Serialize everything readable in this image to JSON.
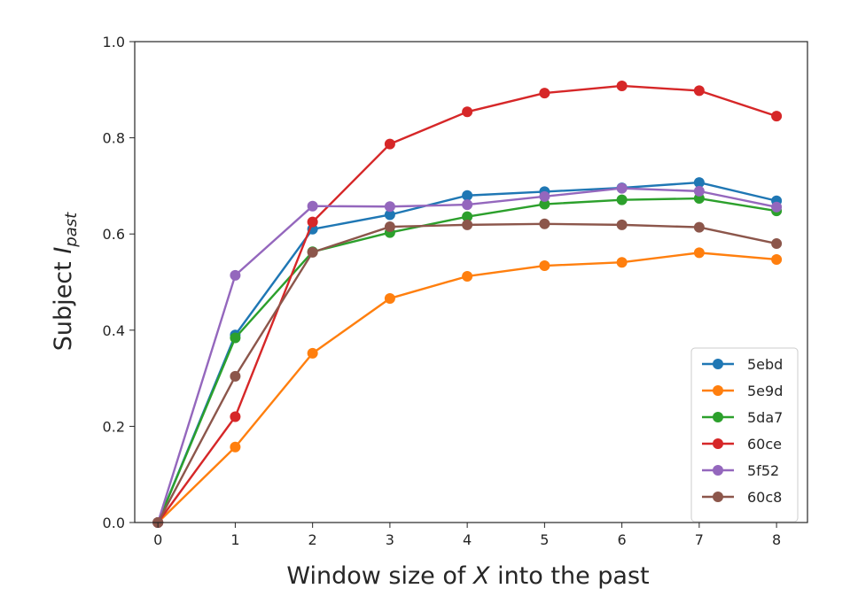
{
  "chart_data": {
    "type": "line",
    "xlabel": {
      "prefix": "Window size of ",
      "italic": "X",
      "suffix": " into the past"
    },
    "ylabel": {
      "prefix": "Subject ",
      "italic": "I",
      "subscript": "past"
    },
    "x": [
      0,
      1,
      2,
      3,
      4,
      5,
      6,
      7,
      8
    ],
    "xlim": [
      -0.3,
      8.4
    ],
    "ylim": [
      0,
      1
    ],
    "xticks": [
      "0",
      "1",
      "2",
      "3",
      "4",
      "5",
      "6",
      "7",
      "8"
    ],
    "yticks": [
      "0.0",
      "0.2",
      "0.4",
      "0.6",
      "0.8",
      "1.0"
    ],
    "grid": false,
    "legend_position": "lower-right",
    "series": [
      {
        "name": "5ebd",
        "color": "#1f77b4",
        "values": [
          0.0,
          0.39,
          0.61,
          0.64,
          0.68,
          0.688,
          0.696,
          0.707,
          0.669
        ]
      },
      {
        "name": "5e9d",
        "color": "#ff7f0e",
        "values": [
          0.0,
          0.157,
          0.352,
          0.466,
          0.512,
          0.534,
          0.541,
          0.561,
          0.547
        ]
      },
      {
        "name": "5da7",
        "color": "#2ca02c",
        "values": [
          0.0,
          0.384,
          0.563,
          0.603,
          0.636,
          0.662,
          0.671,
          0.674,
          0.648
        ]
      },
      {
        "name": "60ce",
        "color": "#d62728",
        "values": [
          0.0,
          0.22,
          0.625,
          0.787,
          0.854,
          0.893,
          0.908,
          0.898,
          0.845
        ]
      },
      {
        "name": "5f52",
        "color": "#9467bd",
        "values": [
          0.0,
          0.514,
          0.658,
          0.657,
          0.661,
          0.678,
          0.695,
          0.689,
          0.656
        ]
      },
      {
        "name": "60c8",
        "color": "#8c564b",
        "values": [
          0.0,
          0.304,
          0.562,
          0.615,
          0.619,
          0.621,
          0.619,
          0.614,
          0.58
        ]
      }
    ]
  }
}
